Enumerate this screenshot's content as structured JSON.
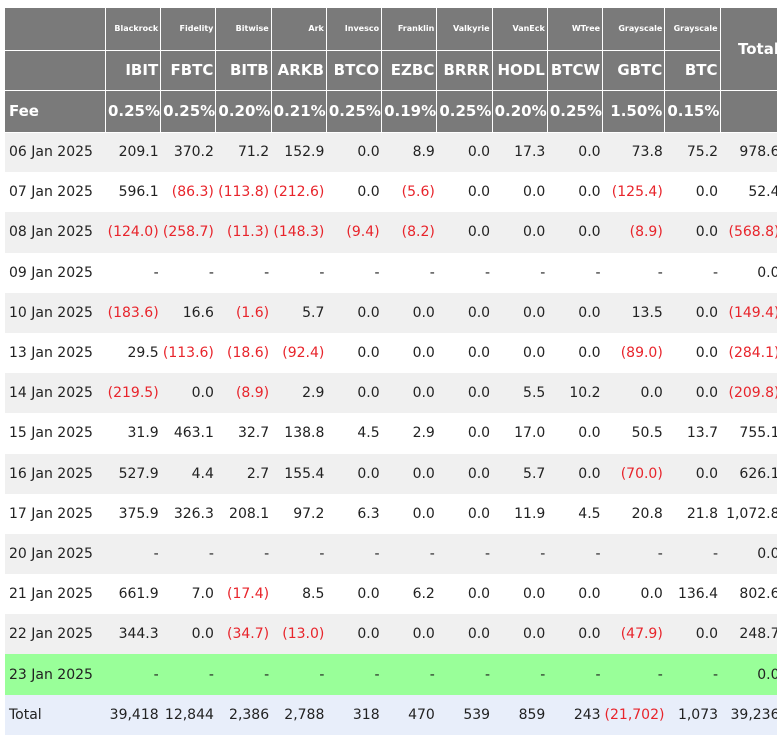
{
  "table": {
    "issuers": [
      "Blackrock",
      "Fidelity",
      "Bitwise",
      "Ark",
      "Invesco",
      "Franklin",
      "Valkyrie",
      "VanEck",
      "WTree",
      "Grayscale",
      "Grayscale"
    ],
    "total_header": "Total",
    "tickers": [
      "IBIT",
      "FBTC",
      "BITB",
      "ARKB",
      "BTCO",
      "EZBC",
      "BRRR",
      "HODL",
      "BTCW",
      "GBTC",
      "BTC"
    ],
    "fee_label": "Fee",
    "fees": [
      "0.25%",
      "0.25%",
      "0.20%",
      "0.21%",
      "0.25%",
      "0.19%",
      "0.25%",
      "0.20%",
      "0.25%",
      "1.50%",
      "0.15%"
    ],
    "rows": [
      {
        "date": "06 Jan 2025",
        "values": [
          "209.1",
          "370.2",
          "71.2",
          "152.9",
          "0.0",
          "8.9",
          "0.0",
          "17.3",
          "0.0",
          "73.8",
          "75.2"
        ],
        "total": "978.6"
      },
      {
        "date": "07 Jan 2025",
        "values": [
          "596.1",
          "(86.3)",
          "(113.8)",
          "(212.6)",
          "0.0",
          "(5.6)",
          "0.0",
          "0.0",
          "0.0",
          "(125.4)",
          "0.0"
        ],
        "total": "52.4"
      },
      {
        "date": "08 Jan 2025",
        "values": [
          "(124.0)",
          "(258.7)",
          "(11.3)",
          "(148.3)",
          "(9.4)",
          "(8.2)",
          "0.0",
          "0.0",
          "0.0",
          "(8.9)",
          "0.0"
        ],
        "total": "(568.8)"
      },
      {
        "date": "09 Jan 2025",
        "values": [
          "-",
          "-",
          "-",
          "-",
          "-",
          "-",
          "-",
          "-",
          "-",
          "-",
          "-"
        ],
        "total": "0.0"
      },
      {
        "date": "10 Jan 2025",
        "values": [
          "(183.6)",
          "16.6",
          "(1.6)",
          "5.7",
          "0.0",
          "0.0",
          "0.0",
          "0.0",
          "0.0",
          "13.5",
          "0.0"
        ],
        "total": "(149.4)"
      },
      {
        "date": "13 Jan 2025",
        "values": [
          "29.5",
          "(113.6)",
          "(18.6)",
          "(92.4)",
          "0.0",
          "0.0",
          "0.0",
          "0.0",
          "0.0",
          "(89.0)",
          "0.0"
        ],
        "total": "(284.1)"
      },
      {
        "date": "14 Jan 2025",
        "values": [
          "(219.5)",
          "0.0",
          "(8.9)",
          "2.9",
          "0.0",
          "0.0",
          "0.0",
          "5.5",
          "10.2",
          "0.0",
          "0.0"
        ],
        "total": "(209.8)"
      },
      {
        "date": "15 Jan 2025",
        "values": [
          "31.9",
          "463.1",
          "32.7",
          "138.8",
          "4.5",
          "2.9",
          "0.0",
          "17.0",
          "0.0",
          "50.5",
          "13.7"
        ],
        "total": "755.1"
      },
      {
        "date": "16 Jan 2025",
        "values": [
          "527.9",
          "4.4",
          "2.7",
          "155.4",
          "0.0",
          "0.0",
          "0.0",
          "5.7",
          "0.0",
          "(70.0)",
          "0.0"
        ],
        "total": "626.1"
      },
      {
        "date": "17 Jan 2025",
        "values": [
          "375.9",
          "326.3",
          "208.1",
          "97.2",
          "6.3",
          "0.0",
          "0.0",
          "11.9",
          "4.5",
          "20.8",
          "21.8"
        ],
        "total": "1,072.8"
      },
      {
        "date": "20 Jan 2025",
        "values": [
          "-",
          "-",
          "-",
          "-",
          "-",
          "-",
          "-",
          "-",
          "-",
          "-",
          "-"
        ],
        "total": "0.0"
      },
      {
        "date": "21 Jan 2025",
        "values": [
          "661.9",
          "7.0",
          "(17.4)",
          "8.5",
          "0.0",
          "6.2",
          "0.0",
          "0.0",
          "0.0",
          "0.0",
          "136.4"
        ],
        "total": "802.6"
      },
      {
        "date": "22 Jan 2025",
        "values": [
          "344.3",
          "0.0",
          "(34.7)",
          "(13.0)",
          "0.0",
          "0.0",
          "0.0",
          "0.0",
          "0.0",
          "(47.9)",
          "0.0"
        ],
        "total": "248.7"
      },
      {
        "date": "23 Jan 2025",
        "values": [
          "-",
          "-",
          "-",
          "-",
          "-",
          "-",
          "-",
          "-",
          "-",
          "-",
          "-"
        ],
        "total": "0.0",
        "highlight": true
      }
    ],
    "footer": {
      "label": "Total",
      "values": [
        "39,418",
        "12,844",
        "2,386",
        "2,788",
        "318",
        "470",
        "539",
        "859",
        "243",
        "(21,702)",
        "1,073"
      ],
      "total": "39,236"
    },
    "colors": {
      "header_bg": "#7a7a7a",
      "row_alt_bg": "#f0f0f0",
      "negative_text": "#e8242b",
      "highlight_row_bg": "#99ff99",
      "footer_bg": "#e8eefa"
    }
  }
}
